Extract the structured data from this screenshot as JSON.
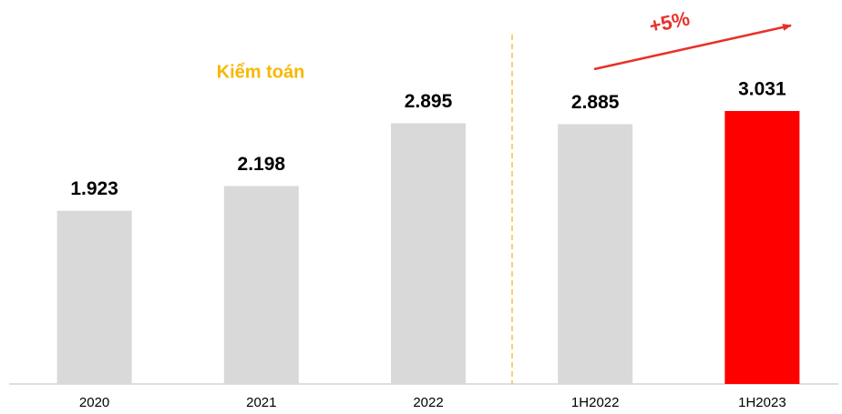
{
  "chart_data": {
    "type": "bar",
    "categories": [
      "2020",
      "2021",
      "2022",
      "1H2022",
      "1H2023"
    ],
    "values": [
      1923,
      2198,
      2895,
      2885,
      3031
    ],
    "value_labels": [
      "1.923",
      "2.198",
      "2.895",
      "2.885",
      "3.031"
    ],
    "colors": [
      "#d9d9d9",
      "#d9d9d9",
      "#d9d9d9",
      "#d9d9d9",
      "#ff0000"
    ],
    "annotations": [
      "Kiểm toán",
      "+5%"
    ]
  }
}
